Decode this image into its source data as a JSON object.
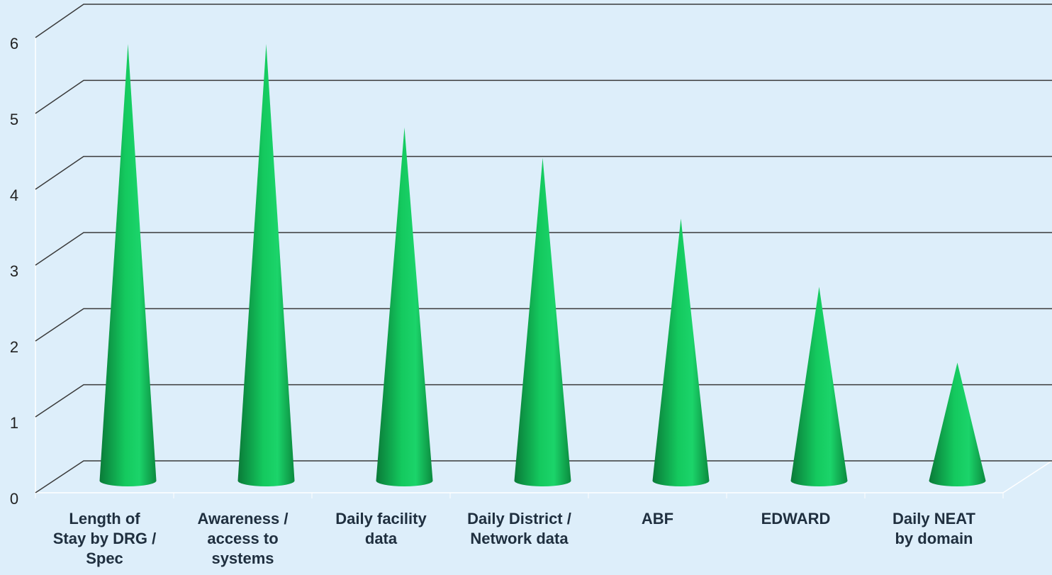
{
  "chart_data": {
    "type": "cone3d",
    "categories": [
      "Length of Stay by DRG / Spec",
      "Awareness / access to systems",
      "Daily facility data",
      "Daily District / Network data",
      "ABF",
      "EDWARD",
      "Daily NEAT by domain"
    ],
    "values": [
      5.7,
      5.7,
      4.6,
      4.2,
      3.4,
      2.5,
      1.5
    ],
    "color": "#0fbf55",
    "ylim": [
      0,
      6
    ],
    "yticks": [
      0,
      1,
      2,
      3,
      4,
      5,
      6
    ],
    "grid": true
  }
}
